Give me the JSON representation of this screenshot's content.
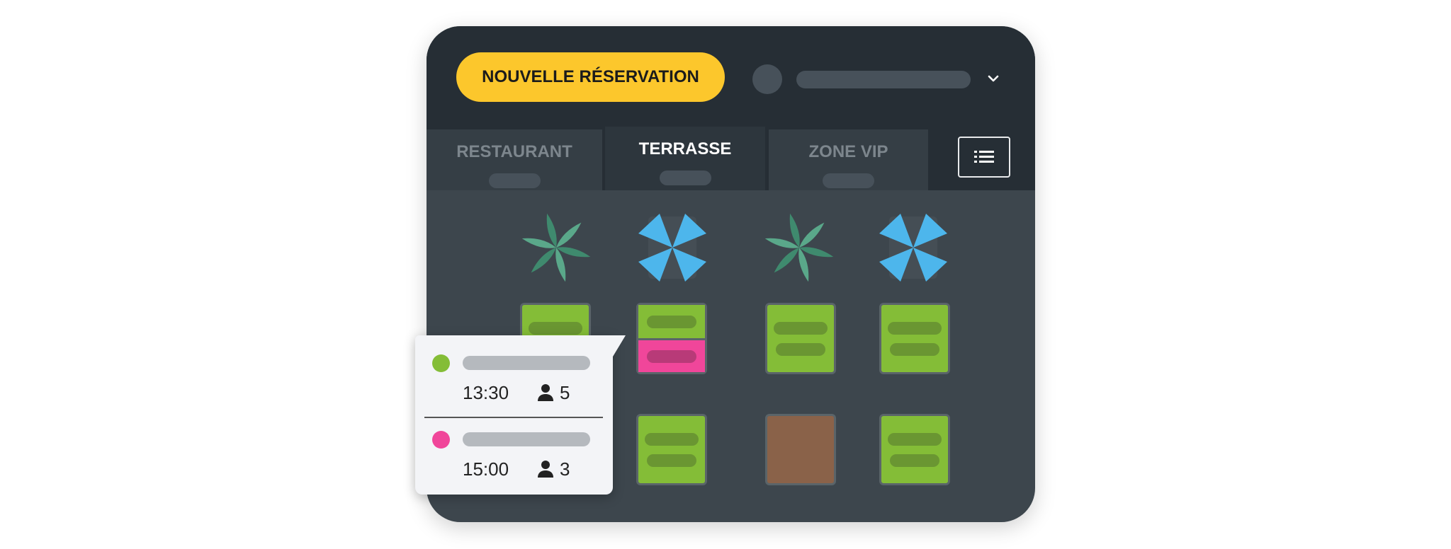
{
  "header": {
    "new_reservation_label": "NOUVELLE RÉSERVATION",
    "user_menu_icon": "chevron-down-icon"
  },
  "tabs": [
    {
      "label": "RESTAURANT",
      "active": false
    },
    {
      "label": "TERRASSE",
      "active": true
    },
    {
      "label": "ZONE VIP",
      "active": false
    }
  ],
  "list_view_icon": "list-icon",
  "floor": {
    "decor": [
      "plant",
      "umbrella",
      "plant",
      "umbrella"
    ],
    "tables_row1": [
      "available",
      "split-available-reserved",
      "available",
      "available"
    ],
    "tables_row2": [
      "available",
      "available",
      "occupied",
      "available"
    ]
  },
  "popup": {
    "reservations": [
      {
        "status_color": "#84bd37",
        "time": "13:30",
        "guests": "5"
      },
      {
        "status_color": "#f0469a",
        "time": "15:00",
        "guests": "3"
      }
    ]
  },
  "colors": {
    "accent": "#fcc72c",
    "available": "#84bd37",
    "reserved": "#f0469a",
    "occupied": "#8a6249",
    "umbrella": "#4db6ec",
    "plant": "#5aa88a"
  }
}
